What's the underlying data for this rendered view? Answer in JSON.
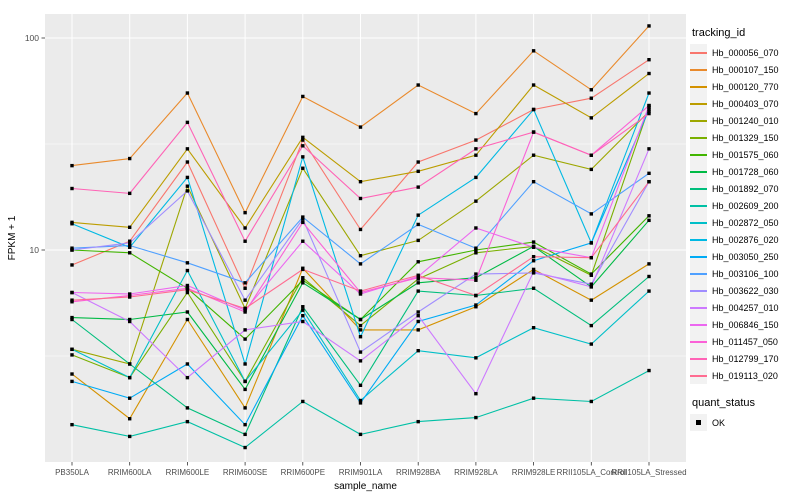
{
  "legend": {
    "tracking_title": "tracking_id",
    "quant_title": "quant_status",
    "quant_status_items": [
      {
        "label": "OK",
        "marker": "black-square"
      }
    ]
  },
  "chart_data": {
    "type": "line",
    "x_type": "categorical",
    "y_scale": "log10",
    "title": "",
    "xlabel": "sample_name",
    "ylabel": "FPKM + 1",
    "ylim": [
      1,
      130
    ],
    "y_ticks": [
      10,
      100
    ],
    "y_minor_gridlines": [
      3.162,
      31.623
    ],
    "grid": true,
    "legend_position": "right",
    "panel_bg": "#EBEBEB",
    "gridline_color": "#FFFFFF",
    "tick_label_color": "#4D4D4D",
    "tick_mark_color": "#333333",
    "marker": {
      "shape": "square",
      "color": "#000000",
      "size": 3.4
    },
    "categories": [
      "PB350LA",
      "RRIM600LA",
      "RRIM600LE",
      "RRIM600SE",
      "RRIM600PE",
      "RRIM901LA",
      "RRIM928BA",
      "RRIM928LA",
      "RRIM928LE",
      "RRII105LA_Control",
      "RRII105LA_Stressed"
    ],
    "series": [
      {
        "name": "Hb_000056_070",
        "color": "#F8766D",
        "values": [
          8.5,
          11,
          26,
          6.6,
          33,
          12.5,
          26,
          33,
          46,
          52,
          79
        ]
      },
      {
        "name": "Hb_000107_150",
        "color": "#E98A2C",
        "values": [
          25,
          27,
          55,
          15,
          53,
          38,
          60,
          44,
          87,
          57,
          114
        ]
      },
      {
        "name": "Hb_000120_770",
        "color": "#D49200",
        "values": [
          2.6,
          1.6,
          4.7,
          1.8,
          8.2,
          4.2,
          4.2,
          5.4,
          8.1,
          5.8,
          8.6
        ]
      },
      {
        "name": "Hb_000403_070",
        "color": "#BC9D00",
        "values": [
          13.5,
          12.8,
          30,
          12.7,
          34,
          21,
          23.5,
          28,
          60,
          42,
          68
        ]
      },
      {
        "name": "Hb_001240_010",
        "color": "#9DA700",
        "values": [
          3.4,
          2.9,
          20,
          5.3,
          24.3,
          9.4,
          11.1,
          17,
          28,
          24,
          45
        ]
      },
      {
        "name": "Hb_001329_150",
        "color": "#79AF00",
        "values": [
          3.2,
          2.5,
          6.3,
          2.4,
          7.4,
          4.4,
          7.3,
          9.7,
          10.4,
          7.6,
          47
        ]
      },
      {
        "name": "Hb_001575_060",
        "color": "#41B500",
        "values": [
          10,
          9.7,
          6.6,
          3.8,
          7.2,
          4.7,
          8.8,
          10,
          10.9,
          7.7,
          14.5
        ]
      },
      {
        "name": "Hb_001728_060",
        "color": "#00BA45",
        "values": [
          4.8,
          4.7,
          5.1,
          2.2,
          7.0,
          4.7,
          7.0,
          7.4,
          10.4,
          6.7,
          13.8
        ]
      },
      {
        "name": "Hb_001892_070",
        "color": "#00BE7C",
        "values": [
          4.7,
          2.9,
          1.8,
          1.35,
          5.4,
          2.3,
          6.4,
          6.1,
          6.6,
          4.4,
          7.5
        ]
      },
      {
        "name": "Hb_002609_200",
        "color": "#00C0A5",
        "values": [
          1.5,
          1.32,
          1.55,
          1.17,
          1.93,
          1.35,
          1.55,
          1.62,
          2.0,
          1.93,
          2.7
        ]
      },
      {
        "name": "Hb_002872_050",
        "color": "#00BFC8",
        "values": [
          3.4,
          2.5,
          8.0,
          2.4,
          5.2,
          1.95,
          3.35,
          3.1,
          4.3,
          3.6,
          6.4
        ]
      },
      {
        "name": "Hb_002876_020",
        "color": "#00B9E3",
        "values": [
          13.3,
          10.3,
          22,
          2.9,
          27.5,
          3.9,
          14.6,
          22,
          46,
          10.8,
          55
        ]
      },
      {
        "name": "Hb_003050_250",
        "color": "#00ABF5",
        "values": [
          2.4,
          2.0,
          2.9,
          1.5,
          4.9,
          1.9,
          4.6,
          5.5,
          8.9,
          10.8,
          46
        ]
      },
      {
        "name": "Hb_003106_100",
        "color": "#4FA0FF",
        "values": [
          10.2,
          10.5,
          8.7,
          7.0,
          14.3,
          8.6,
          13.2,
          10.2,
          21,
          14.8,
          23
        ]
      },
      {
        "name": "Hb_003622_030",
        "color": "#A08DFF",
        "values": [
          10,
          10.8,
          19,
          5.8,
          14,
          3.3,
          5.1,
          7.7,
          7.8,
          6.9,
          21
        ]
      },
      {
        "name": "Hb_004257_010",
        "color": "#CD79FF",
        "values": [
          6.3,
          4.6,
          2.5,
          4.2,
          4.6,
          3.0,
          4.9,
          2.1,
          7.9,
          6.7,
          30
        ]
      },
      {
        "name": "Hb_006846_150",
        "color": "#EC67F0",
        "values": [
          6.3,
          6.2,
          6.8,
          5.2,
          11,
          6.2,
          7.5,
          12.7,
          10.3,
          9.2,
          48
        ]
      },
      {
        "name": "Hb_011457_050",
        "color": "#FB61D7",
        "values": [
          5.7,
          6.1,
          6.6,
          5.1,
          13.5,
          6.3,
          7.4,
          7.2,
          36,
          28,
          48
        ]
      },
      {
        "name": "Hb_012799_170",
        "color": "#FF63B6",
        "values": [
          19.5,
          18.5,
          40,
          11,
          31,
          17.5,
          19.8,
          30,
          36,
          28,
          44
        ]
      },
      {
        "name": "Hb_019113_020",
        "color": "#FF6C91",
        "values": [
          5.8,
          6.0,
          6.5,
          5.3,
          8.1,
          6.4,
          7.6,
          6.1,
          9.3,
          9.2,
          21
        ]
      }
    ]
  }
}
